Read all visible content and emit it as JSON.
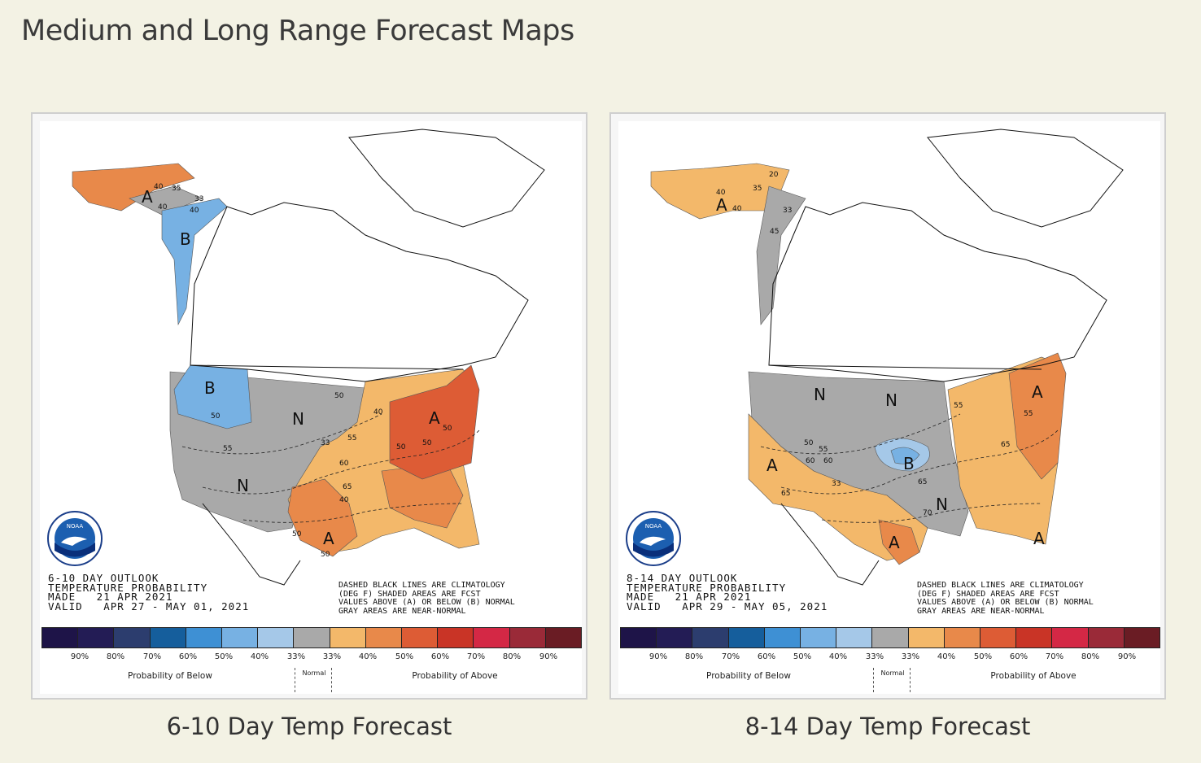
{
  "page": {
    "title": "Medium and Long Range Forecast Maps"
  },
  "colors": {
    "background": "#f3f2e4",
    "scale": [
      "#1e1448",
      "#231c55",
      "#2c3d6e",
      "#155e9c",
      "#3e90d4",
      "#77b1e3",
      "#a5c8e8",
      "#a9a9a9",
      "#f3b86a",
      "#e8894a",
      "#dd5c35",
      "#c93426",
      "#d42845",
      "#9a2a38",
      "#6a1c24"
    ]
  },
  "maps": [
    {
      "caption": "6-10 Day Temp Forecast",
      "outlook": "6-10 DAY OUTLOOK\nTEMPERATURE PROBABILITY\nMADE   21 APR 2021\nVALID   APR 27 - MAY 01, 2021",
      "legend_note": "DASHED BLACK LINES ARE CLIMATOLOGY\n(DEG F) SHADED AREAS ARE FCST\nVALUES ABOVE (A) OR BELOW (B) NORMAL\nGRAY AREAS ARE NEAR-NORMAL",
      "region_letters": [
        "A",
        "B",
        "B",
        "N",
        "N",
        "A",
        "A"
      ],
      "contour_labels": [
        "40",
        "35",
        "33",
        "40",
        "40",
        "50",
        "50",
        "55",
        "50",
        "40",
        "50",
        "55",
        "60",
        "50",
        "33",
        "65",
        "40",
        "50",
        "50"
      ]
    },
    {
      "caption": "8-14 Day Temp Forecast",
      "outlook": "8-14 DAY OUTLOOK\nTEMPERATURE PROBABILITY\nMADE   21 APR 2021\nVALID   APR 29 - MAY 05, 2021",
      "legend_note": "DASHED BLACK LINES ARE CLIMATOLOGY\n(DEG F) SHADED AREAS ARE FCST\nVALUES ABOVE (A) OR BELOW (B) NORMAL\nGRAY AREAS ARE NEAR-NORMAL",
      "region_letters": [
        "A",
        "N",
        "N",
        "A",
        "A",
        "B",
        "N",
        "A",
        "A"
      ],
      "contour_labels": [
        "20",
        "40",
        "35",
        "40",
        "33",
        "45",
        "50",
        "55",
        "55",
        "65",
        "33",
        "60",
        "65",
        "70",
        "55",
        "65",
        "60"
      ]
    }
  ],
  "scale": {
    "ticks": [
      "90%",
      "80%",
      "70%",
      "60%",
      "50%",
      "40%",
      "33%",
      "33%",
      "40%",
      "50%",
      "60%",
      "70%",
      "80%",
      "90%"
    ],
    "below_label": "Probability of Below",
    "normal_label": "Normal",
    "above_label": "Probability of Above"
  },
  "logo": {
    "text": "NOAA"
  }
}
